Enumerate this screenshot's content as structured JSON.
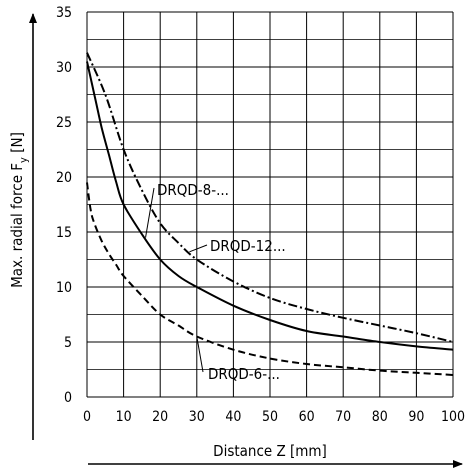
{
  "chart_data": {
    "type": "line",
    "xlabel": "Distance Z [mm]",
    "ylabel": "Max. radial force F",
    "ylabel_subscript": "y",
    "ylabel_suffix": " [N]",
    "xlim": [
      0,
      100
    ],
    "ylim": [
      0,
      35
    ],
    "grid": true,
    "x_ticks": [
      0,
      10,
      20,
      30,
      40,
      50,
      60,
      70,
      80,
      90,
      100
    ],
    "y_ticks": [
      0,
      5,
      10,
      15,
      20,
      25,
      30,
      35
    ],
    "series": [
      {
        "name": "DRQD-8-...",
        "style": "solid",
        "x": [
          0,
          2,
          4,
          6,
          8,
          10,
          15,
          20,
          25,
          30,
          40,
          50,
          60,
          70,
          80,
          90,
          100
        ],
        "y": [
          30.5,
          27.5,
          24.5,
          22.0,
          19.5,
          17.5,
          14.8,
          12.5,
          11.0,
          10.0,
          8.3,
          7.0,
          6.0,
          5.5,
          5.0,
          4.6,
          4.3
        ]
      },
      {
        "name": "DRQD-12...",
        "style": "dashdot",
        "x": [
          0,
          5,
          10,
          15,
          20,
          25,
          30,
          40,
          50,
          60,
          70,
          80,
          90,
          100
        ],
        "y": [
          31.3,
          27.5,
          22.5,
          18.8,
          15.8,
          14.0,
          12.5,
          10.5,
          9.0,
          8.0,
          7.2,
          6.5,
          5.8,
          5.0
        ]
      },
      {
        "name": "DRQD-6-...",
        "style": "dashed",
        "x": [
          0,
          1,
          2,
          4,
          6,
          8,
          10,
          15,
          20,
          25,
          30,
          40,
          50,
          60,
          70,
          80,
          90,
          100
        ],
        "y": [
          19.5,
          17.0,
          15.8,
          14.2,
          13.0,
          12.0,
          11.0,
          9.2,
          7.5,
          6.5,
          5.5,
          4.3,
          3.5,
          3.0,
          2.7,
          2.4,
          2.2,
          2.0
        ]
      }
    ],
    "annotations": [
      {
        "text": "DRQD-8-...",
        "series": 0,
        "x": 16,
        "y": 14.5
      },
      {
        "text": "DRQD-12...",
        "series": 1,
        "x": 28,
        "y": 13.2
      },
      {
        "text": "DRQD-6-...",
        "series": 2,
        "x": 30,
        "y": 5.5
      }
    ]
  }
}
